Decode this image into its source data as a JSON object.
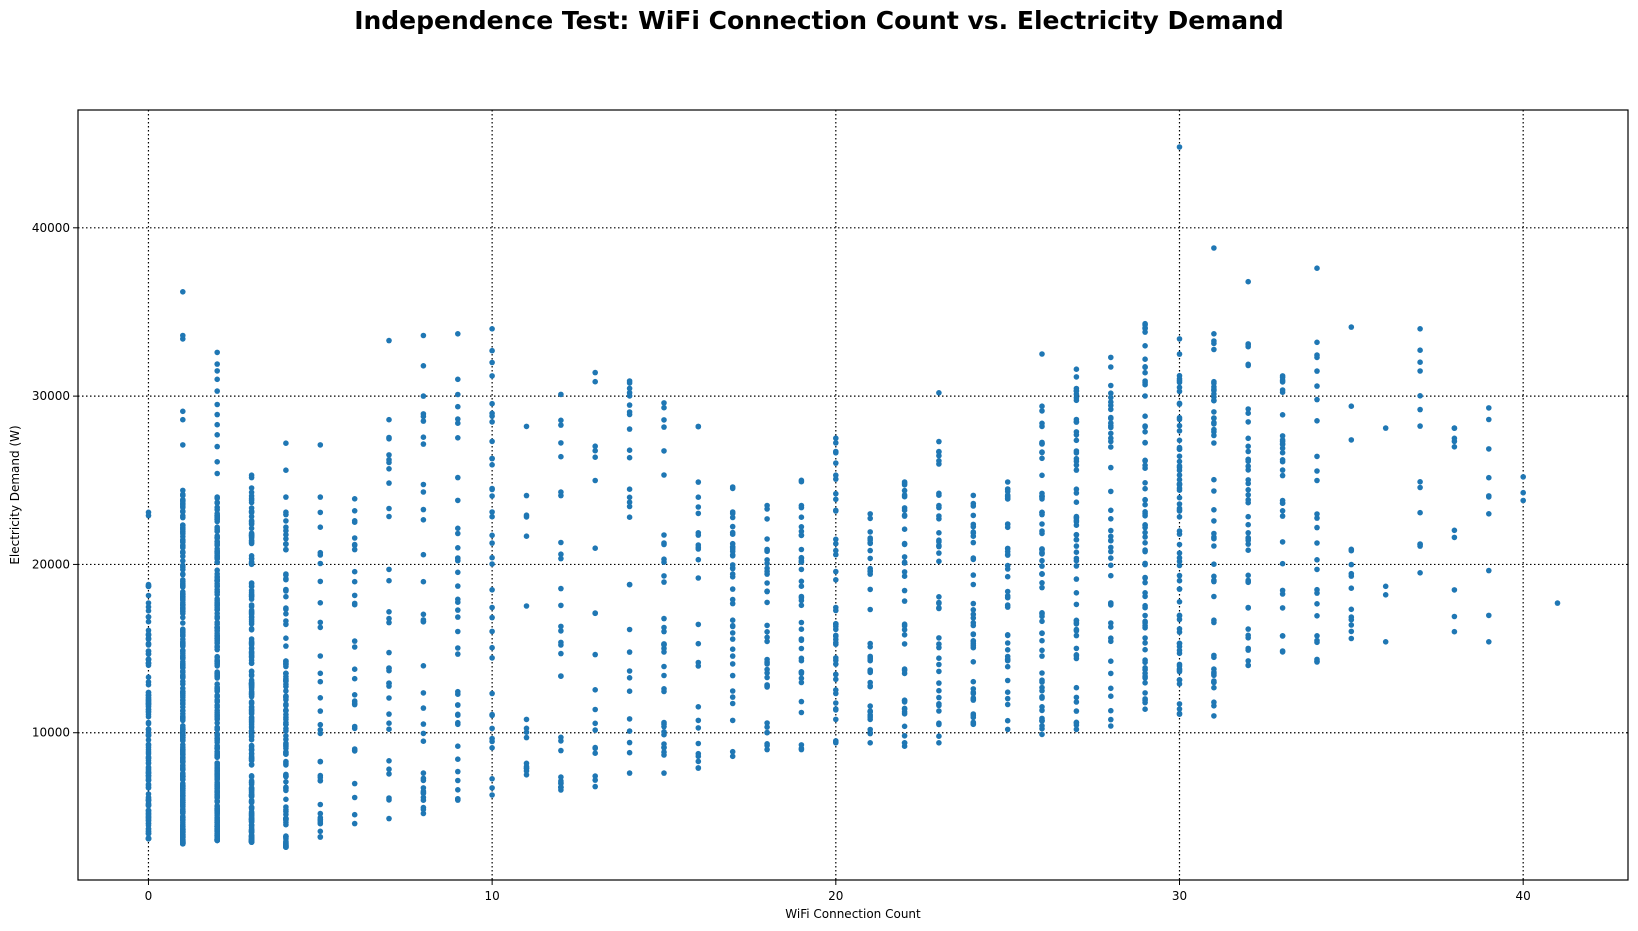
{
  "chart_data": {
    "type": "scatter",
    "title": "Independence Test: WiFi Connection Count vs. Electricity Demand",
    "xlabel": "WiFi Connection Count",
    "ylabel": "Electricity Demand (W)",
    "xlim": [
      -2.05,
      43.05
    ],
    "ylim": [
      1250,
      47000
    ],
    "xticks": [
      0,
      10,
      20,
      30,
      40
    ],
    "yticks": [
      10000,
      20000,
      30000,
      40000
    ],
    "grid": true,
    "marker_color": "#1f77b4",
    "columns": [
      {
        "x": 0,
        "low": 3700,
        "high": 18800,
        "n": 140,
        "extra": [
          22900,
          23100
        ]
      },
      {
        "x": 1,
        "low": 3400,
        "high": 24400,
        "n": 300,
        "extra": [
          27100,
          28600,
          29100,
          33400,
          33600,
          36200
        ]
      },
      {
        "x": 2,
        "low": 3600,
        "high": 24000,
        "n": 260,
        "extra": [
          25400,
          26100,
          27000,
          27700,
          28300,
          28900,
          29500,
          30300,
          31000,
          31500,
          31900,
          32600
        ]
      },
      {
        "x": 3,
        "low": 3500,
        "high": 25300,
        "n": 240,
        "extra": []
      },
      {
        "x": 4,
        "low": 3200,
        "high": 24000,
        "n": 110,
        "extra": [
          25600,
          27200
        ]
      },
      {
        "x": 5,
        "low": 3800,
        "high": 24000,
        "n": 34,
        "extra": [
          27100
        ]
      },
      {
        "x": 6,
        "low": 4600,
        "high": 23900,
        "n": 30,
        "extra": []
      },
      {
        "x": 7,
        "low": 4900,
        "high": 28600,
        "n": 32,
        "extra": [
          33300
        ]
      },
      {
        "x": 8,
        "low": 5200,
        "high": 30000,
        "n": 34,
        "extra": [
          31800,
          33600
        ]
      },
      {
        "x": 9,
        "low": 6000,
        "high": 31000,
        "n": 40,
        "extra": [
          33700
        ]
      },
      {
        "x": 10,
        "low": 6300,
        "high": 31200,
        "n": 34,
        "extra": [
          32000,
          32700,
          34000
        ]
      },
      {
        "x": 11,
        "low": 7500,
        "high": 28200,
        "n": 16,
        "extra": []
      },
      {
        "x": 12,
        "low": 6600,
        "high": 30100,
        "n": 30,
        "extra": []
      },
      {
        "x": 13,
        "low": 6800,
        "high": 31400,
        "n": 20,
        "extra": []
      },
      {
        "x": 14,
        "low": 7600,
        "high": 30900,
        "n": 28,
        "extra": []
      },
      {
        "x": 15,
        "low": 7600,
        "high": 29600,
        "n": 36,
        "extra": []
      },
      {
        "x": 16,
        "low": 7900,
        "high": 28200,
        "n": 26,
        "extra": []
      },
      {
        "x": 17,
        "low": 8600,
        "high": 24600,
        "n": 38,
        "extra": []
      },
      {
        "x": 18,
        "low": 9000,
        "high": 23500,
        "n": 36,
        "extra": []
      },
      {
        "x": 19,
        "low": 9000,
        "high": 25000,
        "n": 38,
        "extra": []
      },
      {
        "x": 20,
        "low": 9400,
        "high": 27500,
        "n": 44,
        "extra": []
      },
      {
        "x": 21,
        "low": 9400,
        "high": 23000,
        "n": 40,
        "extra": []
      },
      {
        "x": 22,
        "low": 9200,
        "high": 24900,
        "n": 40,
        "extra": []
      },
      {
        "x": 23,
        "low": 9400,
        "high": 27300,
        "n": 40,
        "extra": [
          30200
        ]
      },
      {
        "x": 24,
        "low": 10500,
        "high": 24100,
        "n": 42,
        "extra": []
      },
      {
        "x": 25,
        "low": 10200,
        "high": 24900,
        "n": 40,
        "extra": []
      },
      {
        "x": 26,
        "low": 9900,
        "high": 29400,
        "n": 60,
        "extra": [
          32500
        ]
      },
      {
        "x": 27,
        "low": 10200,
        "high": 31600,
        "n": 60,
        "extra": []
      },
      {
        "x": 28,
        "low": 10400,
        "high": 32300,
        "n": 44,
        "extra": []
      },
      {
        "x": 29,
        "low": 11400,
        "high": 34300,
        "n": 70,
        "extra": []
      },
      {
        "x": 30,
        "low": 11100,
        "high": 33400,
        "n": 70,
        "extra": [
          44800
        ]
      },
      {
        "x": 31,
        "low": 11000,
        "high": 33700,
        "n": 50,
        "extra": [
          38800
        ]
      },
      {
        "x": 32,
        "low": 14000,
        "high": 33100,
        "n": 44,
        "extra": [
          36800
        ]
      },
      {
        "x": 33,
        "low": 14800,
        "high": 31200,
        "n": 32,
        "extra": []
      },
      {
        "x": 34,
        "low": 14200,
        "high": 33200,
        "n": 26,
        "extra": [
          37600
        ]
      },
      {
        "x": 35,
        "low": 15600,
        "high": 20900,
        "n": 12,
        "extra": [
          27400,
          29400,
          34100
        ]
      },
      {
        "x": 36,
        "low": 15400,
        "high": 18700,
        "n": 3,
        "extra": [
          28100
        ]
      },
      {
        "x": 37,
        "low": 19500,
        "high": 34000,
        "n": 14,
        "extra": []
      },
      {
        "x": 38,
        "low": 16000,
        "high": 28100,
        "n": 10,
        "extra": []
      },
      {
        "x": 39,
        "low": 15400,
        "high": 29300,
        "n": 10,
        "extra": []
      },
      {
        "x": 40,
        "low": 23800,
        "high": 25200,
        "n": 3,
        "extra": []
      },
      {
        "x": 41,
        "low": 17700,
        "high": 17700,
        "n": 1,
        "extra": []
      }
    ]
  }
}
